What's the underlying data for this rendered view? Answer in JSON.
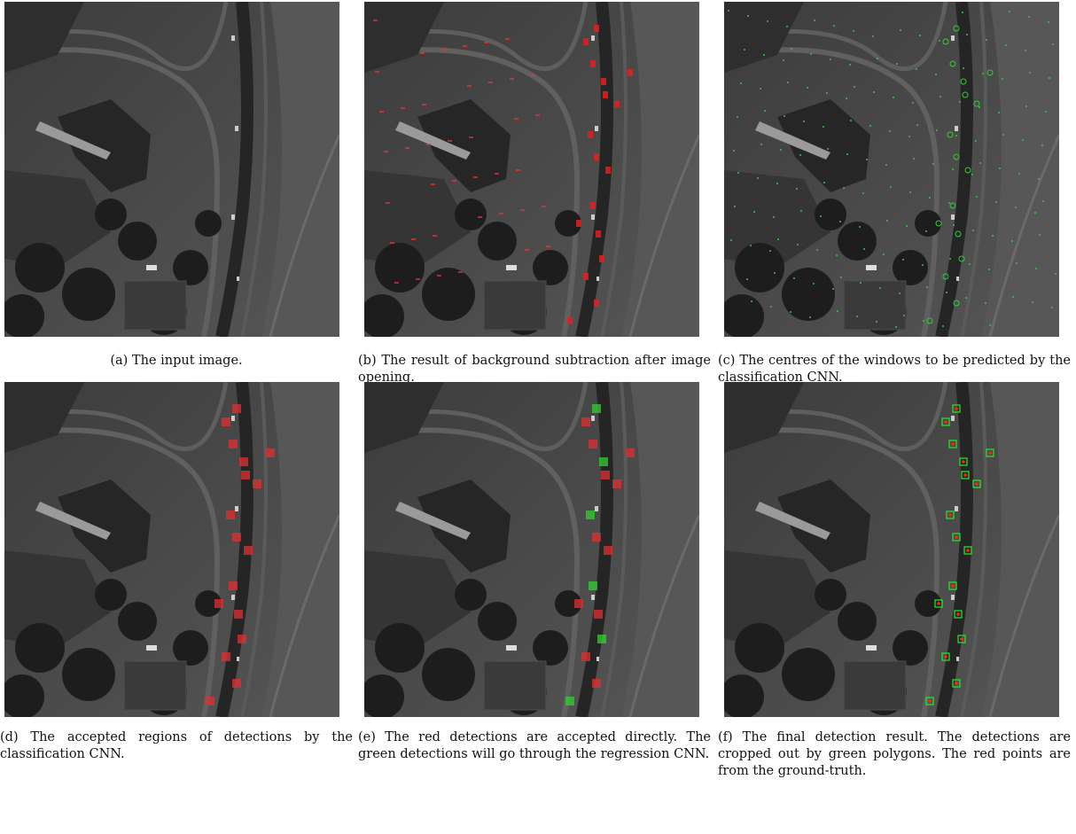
{
  "figure": {
    "panels": [
      {
        "caption": "(a) The input image."
      },
      {
        "caption": "(b) The result of background subtraction after image opening."
      },
      {
        "caption": "(c) The centres of the windows to be predicted by the classification CNN."
      },
      {
        "caption": "(d) The accepted regions of detections by the classification CNN."
      },
      {
        "caption": "(e) The red detections are accepted directly. The green detections will go through the regression CNN."
      },
      {
        "caption": "(f) The final detection result. The detections are cropped out by green polygons. The red points are from the ground-truth."
      }
    ]
  }
}
